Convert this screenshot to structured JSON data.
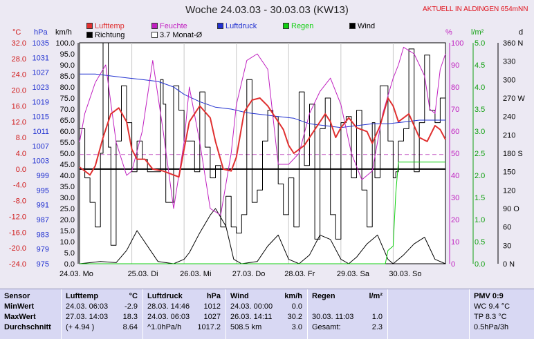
{
  "header": {
    "title": "Woche 24.03.03 - 30.03.03 (KW13)",
    "alert": "AKTUELL IN ALDINGEN 654mNN"
  },
  "legend": [
    {
      "label": "Lufttemp",
      "color": "#e03030",
      "row": 0,
      "col": 0
    },
    {
      "label": "Feuchte",
      "color": "#c020c0",
      "row": 0,
      "col": 1
    },
    {
      "label": "Luftdruck",
      "color": "#2030d0",
      "row": 0,
      "col": 2
    },
    {
      "label": "Regen",
      "color": "#10d010",
      "row": 0,
      "col": 3
    },
    {
      "label": "Wind",
      "color": "#000000",
      "row": 0,
      "col": 4
    },
    {
      "label": "Richtung",
      "color": "#000000",
      "row": 1,
      "col": 0
    },
    {
      "label": "3.7 Monat-Ø",
      "color": "#ffffff",
      "row": 1,
      "col": 1
    }
  ],
  "units": {
    "temp": "°C",
    "pressure": "hPa",
    "wind": "km/h",
    "humidity": "%",
    "rain": "l/m²",
    "direction": "d"
  },
  "stats": {
    "sensor": {
      "labels": [
        "Sensor",
        "MinWert",
        "MaxWert",
        "Durchschnitt"
      ]
    },
    "temp": {
      "head": [
        "Lufttemp",
        "°C"
      ],
      "rows": [
        [
          "24.03.  06:03",
          "-2.9"
        ],
        [
          "27.03.  14:03",
          "18.3"
        ],
        [
          "(+ 4.94 )",
          "8.64"
        ]
      ]
    },
    "pressure": {
      "head": [
        "Luftdruck",
        "hPa"
      ],
      "rows": [
        [
          "28.03.  14:46",
          "1012"
        ],
        [
          "24.03.  06:03",
          "1027"
        ],
        [
          "^1.0hPa/h",
          "1017.2"
        ]
      ]
    },
    "wind": {
      "head": [
        "Wind",
        "km/h"
      ],
      "rows": [
        [
          "24.03.  00:00",
          "0.0"
        ],
        [
          "26.03.  14:11",
          "30.2"
        ],
        [
          "508.5 km",
          "3.0"
        ]
      ]
    },
    "rain": {
      "head": [
        "Regen",
        "l/m²"
      ],
      "rows": [
        [
          "",
          ""
        ],
        [
          "30.03.  11:03",
          "1.0"
        ],
        [
          "Gesamt:",
          "2.3"
        ]
      ]
    },
    "pmv": {
      "head": "PMV 0:9",
      "rows": [
        "WC 9.4 °C",
        "TP 8.3 °C",
        "0.5hPa/3h"
      ]
    }
  },
  "chart_data": {
    "type": "line",
    "title": "Woche 24.03.03 - 30.03.03 (KW13)",
    "x_unit": "days since 24.03. 00:00",
    "xlim": [
      0,
      7
    ],
    "x_tick_labels": [
      "24.03.  Mo",
      "25.03.  Di",
      "26.03.  Mi",
      "27.03.  Do",
      "28.03.  Fr",
      "29.03.  Sa",
      "30.03.  So"
    ],
    "axes": {
      "temp_c": {
        "ticks": [
          "32.0",
          "28.0",
          "24.0",
          "20.0",
          "16.0",
          "12.0",
          "8.0",
          "4.0",
          "0.0",
          "-4.0",
          "-8.0",
          "-12.0",
          "-16.0",
          "-20.0",
          "-24.0"
        ],
        "lim": [
          -24,
          32
        ],
        "color": "#e03030"
      },
      "pressure_hpa": {
        "ticks": [
          "1035",
          "1031",
          "1027",
          "1023",
          "1019",
          "1015",
          "1011",
          "1007",
          "1003",
          "999",
          "995",
          "991",
          "987",
          "983",
          "979",
          "975"
        ],
        "lim": [
          975,
          1035
        ],
        "color": "#2030d0"
      },
      "wind_kmh": {
        "ticks": [
          "100.0",
          "95.0",
          "90.0",
          "85.0",
          "80.0",
          "75.0",
          "70.0",
          "65.0",
          "60.0",
          "55.0",
          "50.0",
          "45.0",
          "40.0",
          "35.0",
          "30.0",
          "25.0",
          "20.0",
          "15.0",
          "10.0",
          "5.0",
          "0.0"
        ],
        "lim": [
          0,
          100
        ],
        "color": "#000000"
      },
      "humidity_pct": {
        "ticks": [
          "100",
          "90",
          "80",
          "70",
          "60",
          "50",
          "40",
          "30",
          "20",
          "10",
          "0"
        ],
        "lim": [
          0,
          100
        ],
        "color": "#c020c0"
      },
      "rain_lm2": {
        "ticks": [
          "5.0",
          "4.5",
          "4.0",
          "3.5",
          "3.0",
          "2.5",
          "2.0",
          "1.5",
          "1.0",
          "0.5",
          "0.0"
        ],
        "lim": [
          0,
          5
        ],
        "color": "#10d010"
      },
      "direction_deg": {
        "ticks": [
          "360 N",
          "330",
          "300",
          "270 W",
          "240",
          "210",
          "180 S",
          "150",
          "120",
          "90 O",
          "60",
          "30",
          "0 N"
        ],
        "lim": [
          0,
          360
        ],
        "color": "#000000"
      }
    },
    "reference_lines": [
      {
        "name": "3.7 Monat-Ø",
        "temp": 3.7,
        "color": "#c050c0",
        "dashed": true
      },
      {
        "name": "0°C",
        "temp": 0,
        "color": "#000000",
        "dashed": false
      }
    ],
    "series": [
      {
        "name": "Lufttemp",
        "axis": "temp_c",
        "color": "#e03030",
        "x": [
          0,
          0.1,
          0.2,
          0.3,
          0.45,
          0.6,
          0.75,
          0.9,
          1.0,
          1.1,
          1.25,
          1.4,
          1.6,
          1.8,
          1.9,
          2.0,
          2.1,
          2.3,
          2.5,
          2.6,
          2.75,
          2.9,
          3.0,
          3.15,
          3.3,
          3.45,
          3.6,
          3.75,
          3.9,
          4.0,
          4.1,
          4.3,
          4.5,
          4.7,
          4.8,
          4.9,
          5.0,
          5.15,
          5.3,
          5.5,
          5.6,
          5.75,
          5.9,
          6.0,
          6.1,
          6.3,
          6.5,
          6.65,
          6.8,
          6.9,
          7.0
        ],
        "y": [
          0.5,
          -0.5,
          -1.5,
          0.8,
          8,
          14,
          15.5,
          12,
          5,
          2.5,
          2.5,
          0,
          -0.5,
          -1.5,
          -2,
          5,
          12,
          16,
          13,
          7,
          0,
          -0.5,
          3,
          14.5,
          17.5,
          18,
          16,
          13,
          10,
          6,
          4,
          6,
          10,
          14,
          12,
          8,
          10.5,
          13,
          10.5,
          9.5,
          6.5,
          11,
          18,
          16,
          12,
          14,
          8,
          7,
          11,
          10,
          7.5
        ]
      },
      {
        "name": "Feuchte",
        "axis": "humidity_pct",
        "color": "#c020c0",
        "x": [
          0,
          0.1,
          0.3,
          0.5,
          0.7,
          0.9,
          1.0,
          1.2,
          1.4,
          1.6,
          1.8,
          2.0,
          2.1,
          2.3,
          2.5,
          2.7,
          2.9,
          3.0,
          3.2,
          3.4,
          3.6,
          3.8,
          4.0,
          4.2,
          4.4,
          4.6,
          4.8,
          5.0,
          5.2,
          5.4,
          5.6,
          5.8,
          6.0,
          6.1,
          6.2,
          6.4,
          6.6,
          6.7,
          6.8,
          6.9,
          7.0
        ],
        "y": [
          55,
          68,
          82,
          90,
          55,
          40,
          42,
          60,
          92,
          60,
          25,
          55,
          80,
          55,
          25,
          22,
          50,
          72,
          92,
          95,
          88,
          45,
          45,
          50,
          68,
          78,
          84,
          72,
          50,
          38,
          42,
          68,
          84,
          90,
          98,
          95,
          85,
          70,
          68,
          88,
          95
        ]
      },
      {
        "name": "Luftdruck",
        "axis": "pressure_hpa",
        "color": "#2030d0",
        "x": [
          0,
          0.3,
          0.6,
          0.9,
          1.2,
          1.5,
          1.8,
          2.0,
          2.3,
          2.6,
          2.9,
          3.2,
          3.5,
          3.8,
          4.1,
          4.4,
          4.7,
          5.0,
          5.3,
          5.6,
          5.9,
          6.2,
          6.5,
          6.8,
          7.0
        ],
        "y": [
          1026.5,
          1026.5,
          1026,
          1025.5,
          1025,
          1024.5,
          1023,
          1021,
          1019,
          1017.5,
          1017,
          1016,
          1015.5,
          1015,
          1014.5,
          1013,
          1012.5,
          1012,
          1012.5,
          1013,
          1013,
          1013.5,
          1014,
          1014,
          1014
        ]
      },
      {
        "name": "Wind",
        "axis": "wind_kmh",
        "color": "#000000",
        "x": [
          0,
          0.4,
          0.7,
          0.9,
          1.1,
          1.5,
          1.8,
          2.0,
          2.1,
          2.3,
          2.5,
          2.6,
          2.8,
          2.95,
          3.1,
          3.4,
          3.6,
          3.8,
          4.0,
          4.2,
          4.4,
          4.6,
          4.8,
          5.0,
          5.15,
          5.3,
          5.5,
          5.7,
          5.9,
          6.0,
          6.2,
          6.4,
          6.6,
          6.8,
          7.0
        ],
        "y": [
          0,
          1,
          0.5,
          6,
          15,
          1,
          0,
          2,
          5,
          14,
          22,
          25,
          17,
          2,
          0,
          1,
          8,
          13,
          2,
          0,
          4,
          13,
          11,
          2,
          0,
          3,
          9,
          13,
          2,
          0,
          4,
          9,
          12,
          2,
          0
        ]
      },
      {
        "name": "Regen",
        "axis": "rain_lm2",
        "color": "#10d010",
        "x": [
          0,
          5.6,
          5.85,
          5.9,
          6.0,
          6.05,
          6.1,
          6.3,
          6.5,
          7.0
        ],
        "y": [
          0,
          0,
          0,
          0.3,
          0.4,
          1.6,
          2.3,
          2.3,
          2.3,
          2.3
        ]
      },
      {
        "name": "Richtung",
        "axis": "direction_deg",
        "color": "#000000",
        "x": [
          0,
          0.1,
          0.2,
          0.3,
          0.4,
          0.45,
          0.55,
          0.6,
          0.7,
          0.8,
          0.9,
          1.0,
          1.1,
          1.2,
          1.3,
          1.5,
          1.55,
          1.6,
          1.65,
          1.8,
          1.9,
          2.0,
          2.2,
          2.3,
          2.4,
          2.5,
          2.6,
          2.7,
          2.8,
          2.9,
          3.0,
          3.1,
          3.2,
          3.3,
          3.4,
          3.5,
          3.6,
          3.7,
          3.8,
          3.9,
          4.0,
          4.1,
          4.2,
          4.3,
          4.4,
          4.5,
          4.6,
          4.7,
          4.8,
          4.9,
          5.0,
          5.1,
          5.2,
          5.3,
          5.4,
          5.5,
          5.6,
          5.65,
          5.75,
          5.8,
          5.9,
          6.0,
          6.05,
          6.1,
          6.2,
          6.3,
          6.4,
          6.5,
          6.6,
          6.7,
          6.8,
          6.9,
          7.0
        ],
        "y": [
          220,
          140,
          100,
          60,
          180,
          360,
          190,
          30,
          200,
          290,
          230,
          150,
          200,
          170,
          150,
          150,
          300,
          260,
          100,
          290,
          250,
          200,
          150,
          280,
          190,
          140,
          160,
          60,
          110,
          60,
          50,
          80,
          300,
          100,
          120,
          200,
          250,
          240,
          130,
          80,
          140,
          60,
          280,
          160,
          260,
          40,
          220,
          270,
          80,
          40,
          230,
          240,
          140,
          250,
          120,
          60,
          230,
          140,
          290,
          290,
          200,
          140,
          150,
          200,
          220,
          350,
          150,
          230,
          340,
          250,
          230,
          270,
          250
        ]
      }
    ]
  }
}
